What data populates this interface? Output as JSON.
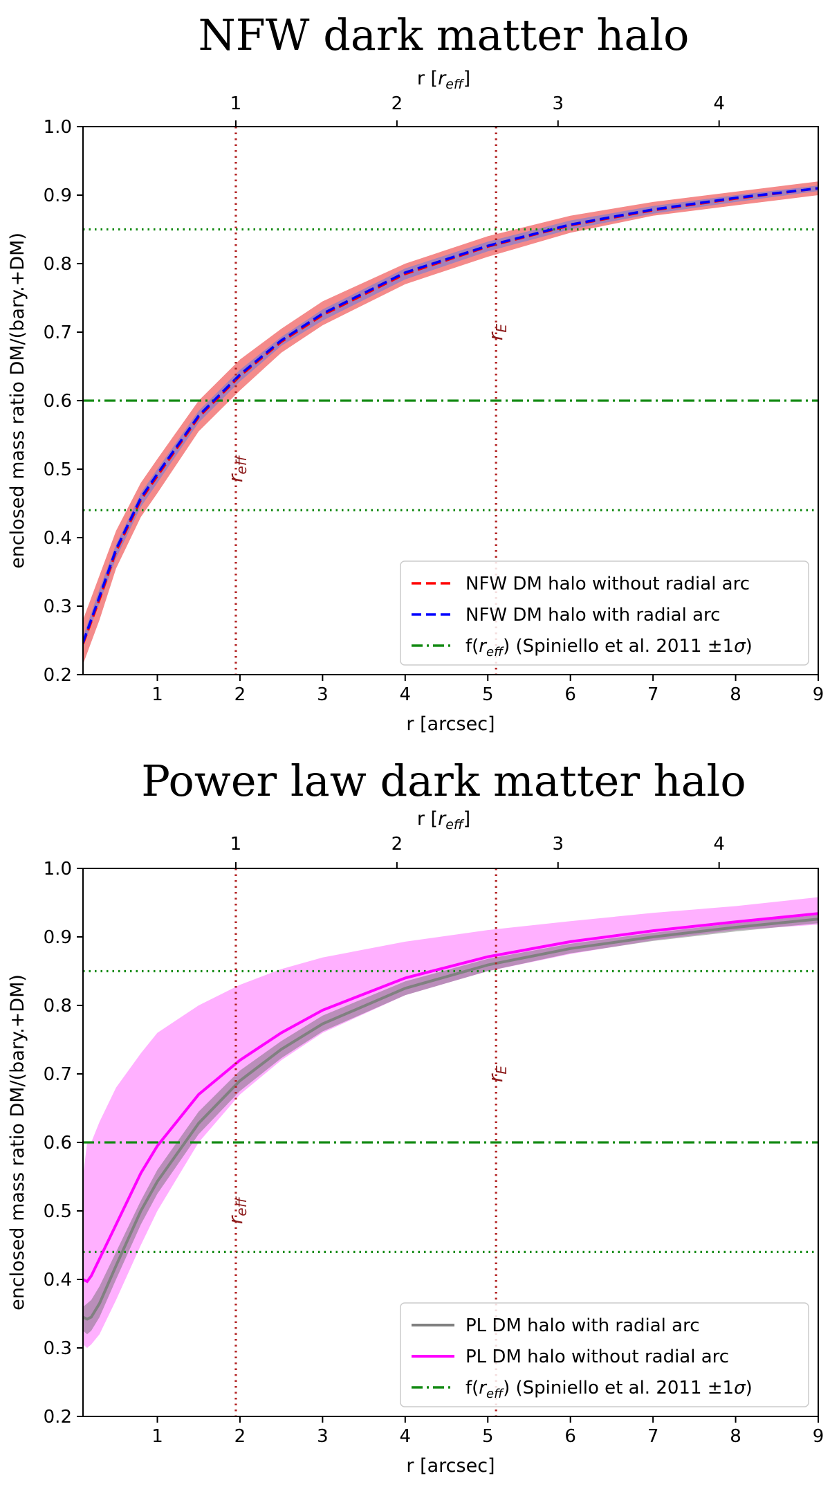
{
  "chart_data": [
    {
      "type": "line",
      "title": "NFW dark matter halo",
      "xlabel": "r [arcsec]",
      "ylabel": "enclosed mass ratio DM/(bary.+DM)",
      "top_xlabel_main": "r [",
      "top_xlabel_italic": "r",
      "top_xlabel_sub": "eff",
      "top_xlabel_close": "]",
      "xlim": [
        0.1,
        9
      ],
      "ylim": [
        0.2,
        1.0
      ],
      "xticks": [
        "1",
        "2",
        "3",
        "4",
        "5",
        "6",
        "7",
        "8",
        "9"
      ],
      "yticks": [
        "0.2",
        "0.3",
        "0.4",
        "0.5",
        "0.6",
        "0.7",
        "0.8",
        "0.9",
        "1.0"
      ],
      "top_ticks": [
        {
          "label": "1",
          "x": 1.95
        },
        {
          "label": "2",
          "x": 3.9
        },
        {
          "label": "3",
          "x": 5.85
        },
        {
          "label": "4",
          "x": 7.8
        }
      ],
      "bands": [
        {
          "color": "#f48a8a",
          "opacity": 1.0,
          "x": [
            0.1,
            0.3,
            0.5,
            0.8,
            1.0,
            1.5,
            2.0,
            2.5,
            3.0,
            4.0,
            5.0,
            6.0,
            7.0,
            8.0,
            9.0
          ],
          "lower": [
            0.215,
            0.28,
            0.355,
            0.43,
            0.465,
            0.555,
            0.615,
            0.67,
            0.71,
            0.77,
            0.81,
            0.845,
            0.87,
            0.885,
            0.9
          ],
          "upper": [
            0.28,
            0.345,
            0.41,
            0.48,
            0.515,
            0.6,
            0.66,
            0.705,
            0.745,
            0.8,
            0.84,
            0.87,
            0.89,
            0.905,
            0.92
          ]
        },
        {
          "color": "#8a7dc9",
          "opacity": 0.75,
          "x": [
            0.1,
            0.3,
            0.5,
            0.8,
            1.0,
            1.5,
            2.0,
            2.5,
            3.0,
            4.0,
            5.0,
            6.0,
            7.0,
            8.0,
            9.0
          ],
          "lower": [
            0.24,
            0.305,
            0.37,
            0.445,
            0.48,
            0.568,
            0.628,
            0.68,
            0.717,
            0.777,
            0.818,
            0.85,
            0.873,
            0.89,
            0.906
          ],
          "upper": [
            0.255,
            0.325,
            0.39,
            0.465,
            0.5,
            0.585,
            0.645,
            0.693,
            0.733,
            0.793,
            0.832,
            0.863,
            0.884,
            0.9,
            0.914
          ]
        }
      ],
      "series": [
        {
          "name": "NFW DM halo without radial arc",
          "color": "#ff0000",
          "style": "dashed",
          "x": [
            0.1,
            0.3,
            0.5,
            0.8,
            1.0,
            1.5,
            2.0,
            2.5,
            3.0,
            4.0,
            5.0,
            6.0,
            7.0,
            8.0,
            9.0
          ],
          "y": [
            0.245,
            0.31,
            0.38,
            0.455,
            0.49,
            0.576,
            0.636,
            0.686,
            0.725,
            0.785,
            0.825,
            0.856,
            0.878,
            0.895,
            0.91
          ]
        },
        {
          "name": "NFW DM halo with radial arc",
          "color": "#0000ff",
          "style": "dashed",
          "x": [
            0.1,
            0.3,
            0.5,
            0.8,
            1.0,
            1.5,
            2.0,
            2.5,
            3.0,
            4.0,
            5.0,
            6.0,
            7.0,
            8.0,
            9.0
          ],
          "y": [
            0.247,
            0.314,
            0.383,
            0.458,
            0.493,
            0.578,
            0.638,
            0.688,
            0.727,
            0.787,
            0.826,
            0.857,
            0.879,
            0.896,
            0.91
          ]
        }
      ],
      "hlines": [
        {
          "y": 0.85,
          "color": "#138a13",
          "style": "dotted"
        },
        {
          "y": 0.6,
          "color": "#138a13",
          "style": "dashdot"
        },
        {
          "y": 0.44,
          "color": "#138a13",
          "style": "dotted"
        }
      ],
      "vlines": [
        {
          "x": 1.95,
          "color": "#b22222",
          "style": "dotted",
          "label_italic": "r",
          "label_sub": "eff",
          "label_y": 0.5
        },
        {
          "x": 5.1,
          "color": "#b22222",
          "style": "dotted",
          "label_italic": "r",
          "label_sub": "E",
          "label_y": 0.7
        }
      ],
      "legend": {
        "position": "lower-right",
        "entries": [
          {
            "text": "NFW DM halo without radial arc",
            "color": "#ff0000",
            "style": "dashed"
          },
          {
            "text": "NFW DM halo with radial arc",
            "color": "#0000ff",
            "style": "dashed"
          },
          {
            "text_pre": "f(",
            "text_italic": "r",
            "text_sub": "eff",
            "text_post": ") (Spiniello et al. 2011 ±1",
            "text_sigma": "σ",
            "text_end": ")",
            "color": "#138a13",
            "style": "dashdot"
          }
        ]
      }
    },
    {
      "type": "line",
      "title": "Power law dark matter halo",
      "xlabel": "r [arcsec]",
      "ylabel": "enclosed mass ratio DM/(bary.+DM)",
      "top_xlabel_main": "r [",
      "top_xlabel_italic": "r",
      "top_xlabel_sub": "eff",
      "top_xlabel_close": "]",
      "xlim": [
        0.1,
        9
      ],
      "ylim": [
        0.2,
        1.0
      ],
      "xticks": [
        "1",
        "2",
        "3",
        "4",
        "5",
        "6",
        "7",
        "8",
        "9"
      ],
      "yticks": [
        "0.2",
        "0.3",
        "0.4",
        "0.5",
        "0.6",
        "0.7",
        "0.8",
        "0.9",
        "1.0"
      ],
      "top_ticks": [
        {
          "label": "1",
          "x": 1.95
        },
        {
          "label": "2",
          "x": 3.9
        },
        {
          "label": "3",
          "x": 5.85
        },
        {
          "label": "4",
          "x": 7.8
        }
      ],
      "bands": [
        {
          "color": "#ffb0ff",
          "opacity": 1.0,
          "x": [
            0.1,
            0.15,
            0.2,
            0.3,
            0.5,
            0.8,
            1.0,
            1.5,
            2.0,
            2.5,
            3.0,
            4.0,
            5.0,
            6.0,
            7.0,
            8.0,
            9.0
          ],
          "lower": [
            0.305,
            0.3,
            0.305,
            0.32,
            0.37,
            0.45,
            0.5,
            0.6,
            0.67,
            0.72,
            0.76,
            0.815,
            0.85,
            0.875,
            0.895,
            0.91,
            0.918
          ],
          "upper": [
            0.55,
            0.6,
            0.6,
            0.63,
            0.68,
            0.73,
            0.76,
            0.8,
            0.83,
            0.853,
            0.87,
            0.893,
            0.91,
            0.923,
            0.935,
            0.945,
            0.958
          ]
        },
        {
          "color": "#666666",
          "opacity": 0.45,
          "x": [
            0.1,
            0.15,
            0.2,
            0.3,
            0.5,
            0.8,
            1.0,
            1.5,
            2.0,
            2.5,
            3.0,
            4.0,
            5.0,
            6.0,
            7.0,
            8.0,
            9.0
          ],
          "lower": [
            0.325,
            0.32,
            0.325,
            0.345,
            0.4,
            0.48,
            0.525,
            0.612,
            0.675,
            0.723,
            0.762,
            0.815,
            0.85,
            0.876,
            0.894,
            0.908,
            0.92
          ],
          "upper": [
            0.36,
            0.365,
            0.37,
            0.39,
            0.44,
            0.515,
            0.56,
            0.645,
            0.705,
            0.748,
            0.785,
            0.835,
            0.868,
            0.89,
            0.906,
            0.92,
            0.932
          ]
        }
      ],
      "series": [
        {
          "name": "PL DM halo with radial arc",
          "color": "#808080",
          "style": "solid",
          "x": [
            0.1,
            0.15,
            0.2,
            0.3,
            0.5,
            0.8,
            1.0,
            1.5,
            2.0,
            2.5,
            3.0,
            4.0,
            5.0,
            6.0,
            7.0,
            8.0,
            9.0
          ],
          "y": [
            0.345,
            0.342,
            0.345,
            0.365,
            0.42,
            0.5,
            0.543,
            0.628,
            0.69,
            0.736,
            0.773,
            0.825,
            0.859,
            0.883,
            0.9,
            0.914,
            0.926
          ]
        },
        {
          "name": "PL DM halo without radial arc",
          "color": "#ff00ff",
          "style": "solid",
          "x": [
            0.1,
            0.15,
            0.2,
            0.3,
            0.5,
            0.8,
            1.0,
            1.5,
            2.0,
            2.5,
            3.0,
            4.0,
            5.0,
            6.0,
            7.0,
            8.0,
            9.0
          ],
          "y": [
            0.4,
            0.397,
            0.405,
            0.43,
            0.48,
            0.555,
            0.595,
            0.67,
            0.72,
            0.76,
            0.793,
            0.84,
            0.871,
            0.893,
            0.909,
            0.922,
            0.934
          ]
        }
      ],
      "hlines": [
        {
          "y": 0.85,
          "color": "#138a13",
          "style": "dotted"
        },
        {
          "y": 0.6,
          "color": "#138a13",
          "style": "dashdot"
        },
        {
          "y": 0.44,
          "color": "#138a13",
          "style": "dotted"
        }
      ],
      "vlines": [
        {
          "x": 1.95,
          "color": "#b22222",
          "style": "dotted",
          "label_italic": "r",
          "label_sub": "eff",
          "label_y": 0.5
        },
        {
          "x": 5.1,
          "color": "#b22222",
          "style": "dotted",
          "label_italic": "r",
          "label_sub": "E",
          "label_y": 0.7
        }
      ],
      "legend": {
        "position": "lower-right",
        "entries": [
          {
            "text": "PL DM halo with radial arc",
            "color": "#808080",
            "style": "solid"
          },
          {
            "text": "PL DM halo without radial arc",
            "color": "#ff00ff",
            "style": "solid"
          },
          {
            "text_pre": "f(",
            "text_italic": "r",
            "text_sub": "eff",
            "text_post": ") (Spiniello et al. 2011 ±1",
            "text_sigma": "σ",
            "text_end": ")",
            "color": "#138a13",
            "style": "dashdot"
          }
        ]
      }
    }
  ]
}
